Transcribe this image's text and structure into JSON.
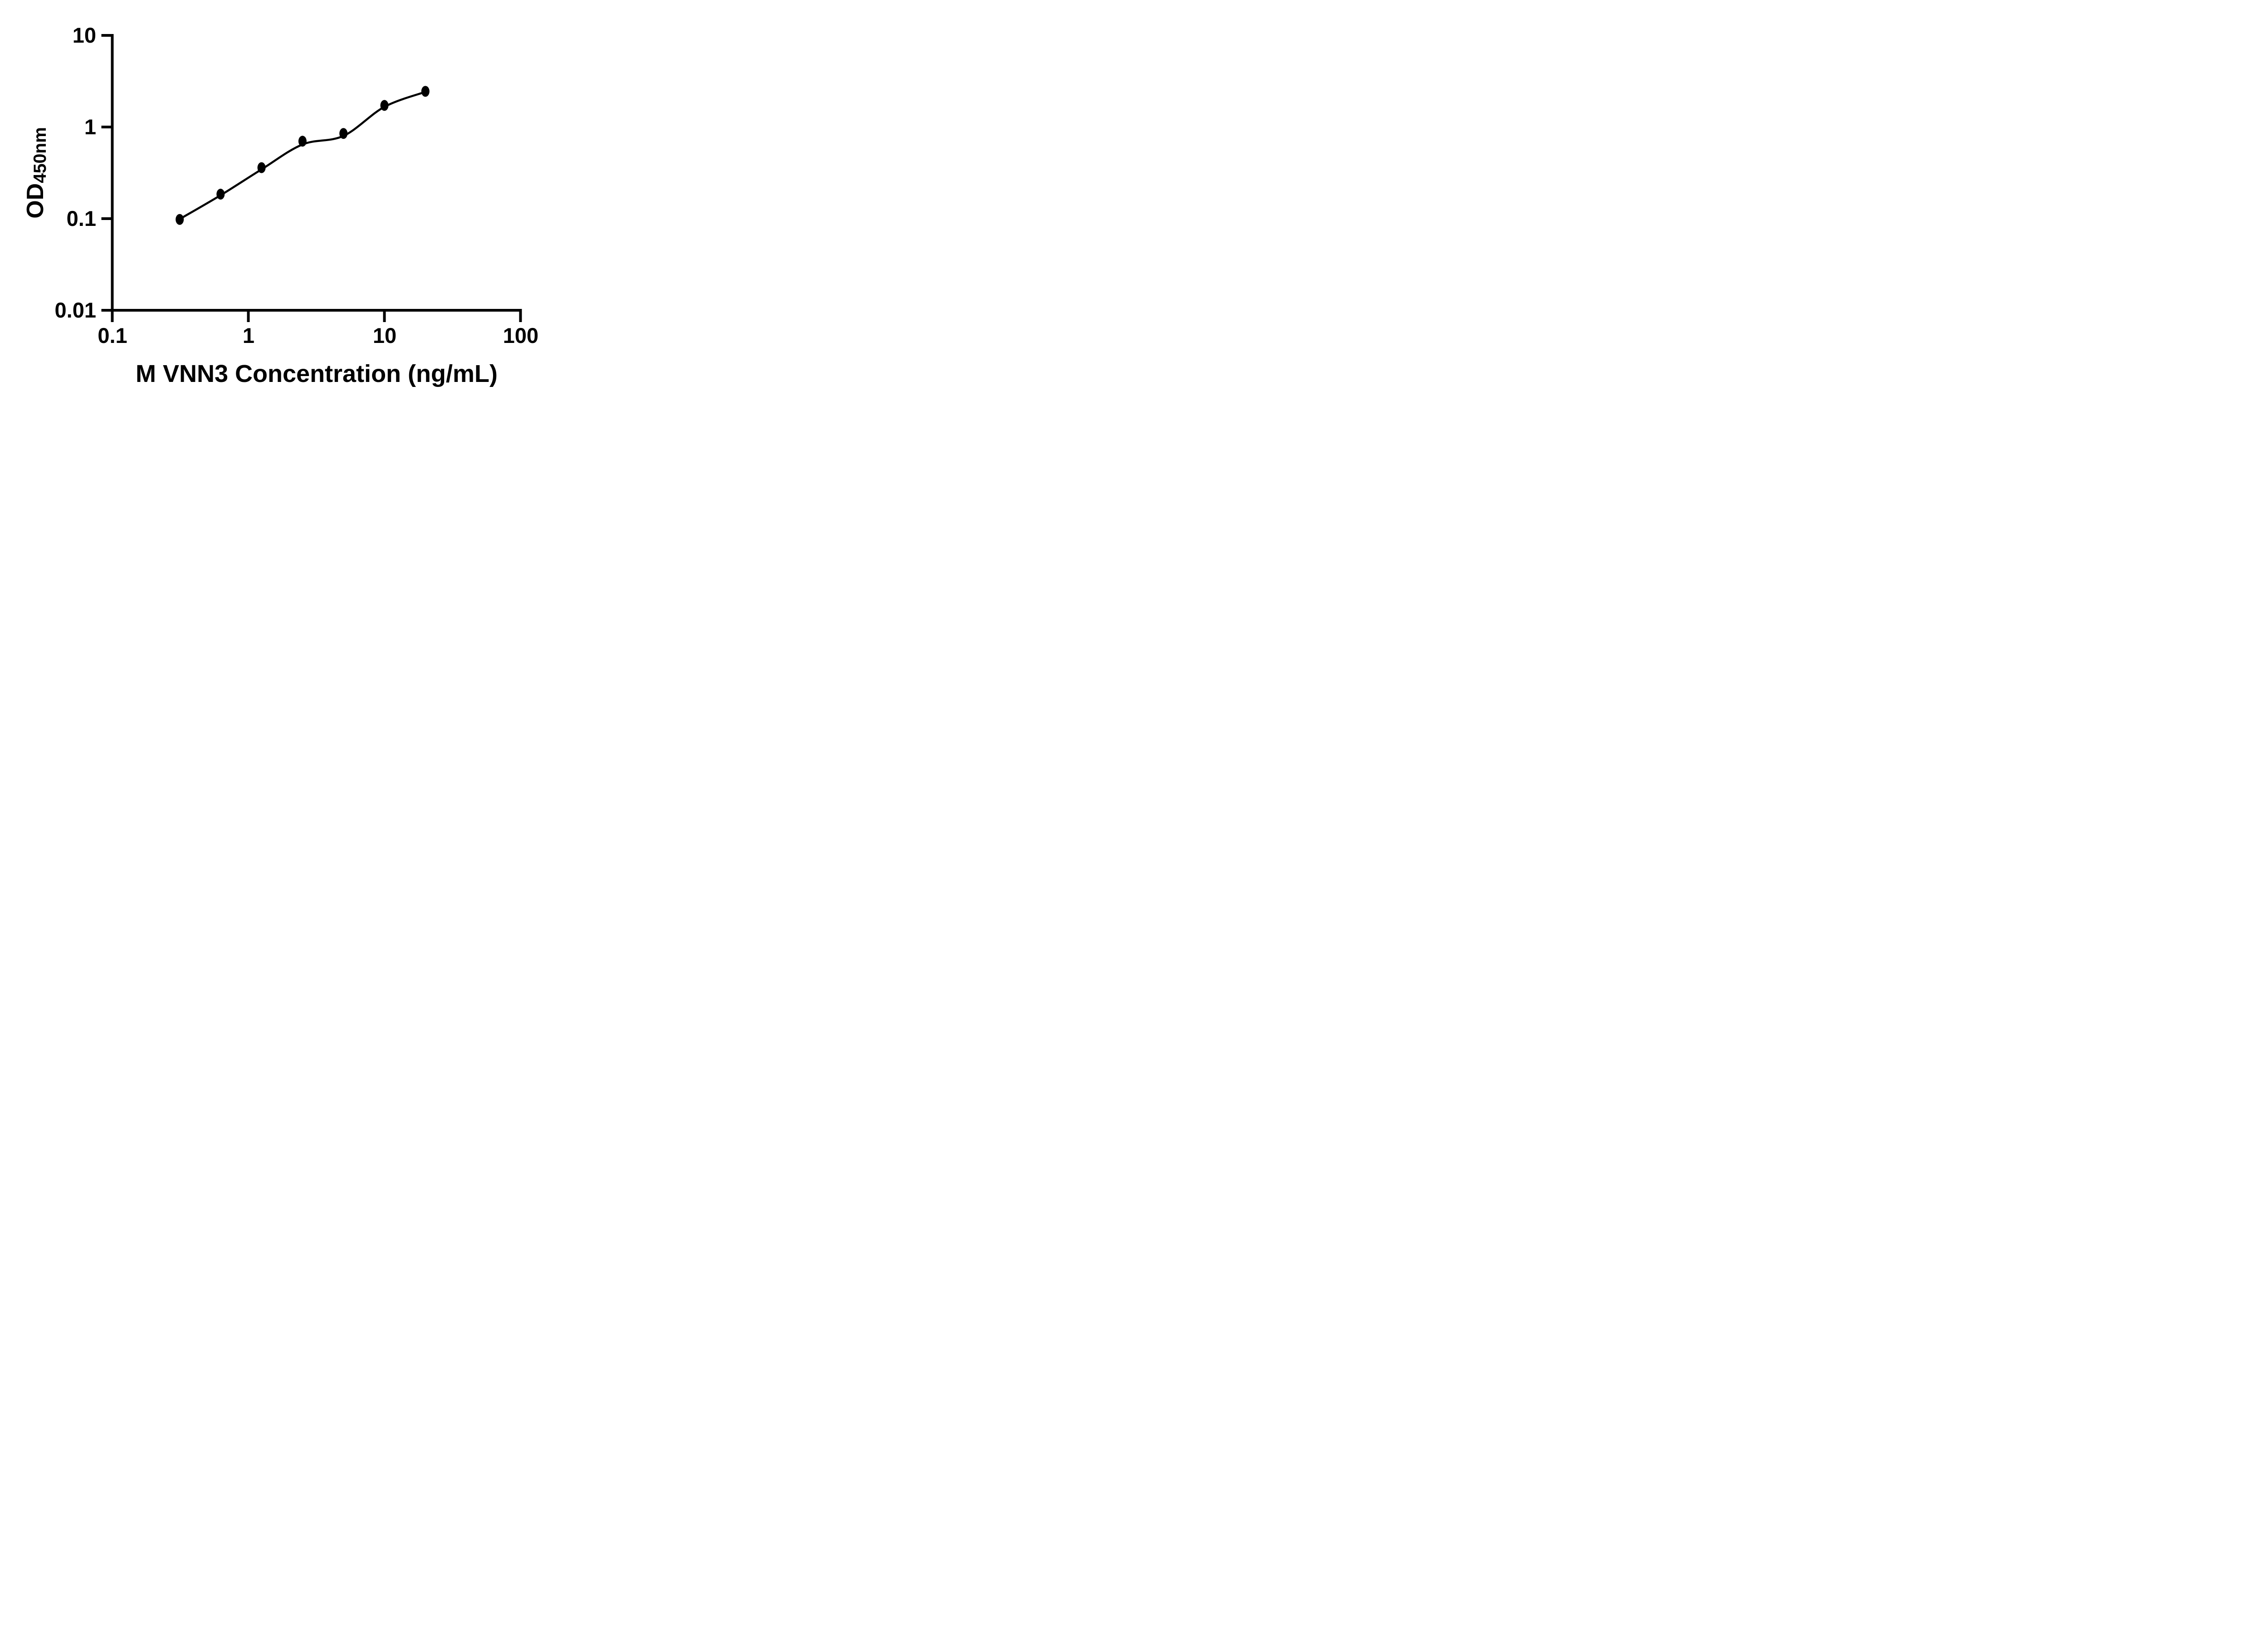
{
  "figure": {
    "background_color": "#ffffff",
    "ink_color": "#000000"
  },
  "chart_data": {
    "type": "scatter",
    "title": "",
    "xlabel": "M VNN3 Concentration (ng/mL)",
    "ylabel": "OD450nm",
    "ylabel_base": "OD",
    "ylabel_sub": "450nm",
    "x_scale": "log10",
    "y_scale": "log10",
    "xlim": [
      0.1,
      100
    ],
    "ylim": [
      0.01,
      10
    ],
    "x_ticks": [
      0.1,
      1,
      10,
      100
    ],
    "x_tick_labels": [
      "0.1",
      "1",
      "10",
      "100"
    ],
    "y_ticks": [
      0.01,
      0.1,
      1,
      10
    ],
    "y_tick_labels": [
      "0.01",
      "0.1",
      "1",
      "10"
    ],
    "grid": false,
    "legend": null,
    "series": [
      {
        "name": "standard-points",
        "type": "scatter",
        "marker": "filled-circle",
        "color": "#000000",
        "x": [
          0.313,
          0.625,
          1.25,
          2.5,
          5,
          10,
          20
        ],
        "y": [
          0.098,
          0.185,
          0.36,
          0.7,
          0.85,
          1.72,
          2.45
        ]
      },
      {
        "name": "fit-curve",
        "type": "line",
        "color": "#000000",
        "x": [
          0.313,
          0.625,
          1.25,
          2.5,
          5,
          10,
          20
        ],
        "y": [
          0.099,
          0.18,
          0.345,
          0.645,
          0.8,
          1.66,
          2.42
        ]
      }
    ]
  }
}
